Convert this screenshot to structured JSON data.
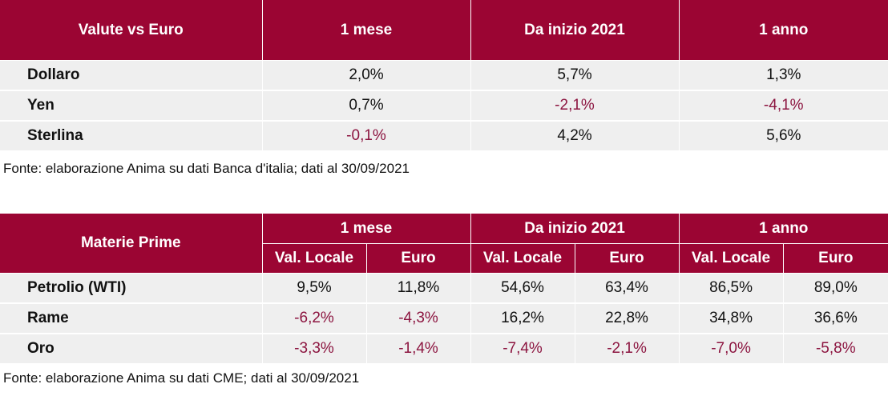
{
  "currency_table": {
    "headers": [
      "Valute vs Euro",
      "1 mese",
      "Da inizio 2021",
      "1 anno"
    ],
    "rows": [
      {
        "name": "Dollaro",
        "values": [
          "2,0%",
          "5,7%",
          "1,3%"
        ]
      },
      {
        "name": "Yen",
        "values": [
          "0,7%",
          "-2,1%",
          "-4,1%"
        ]
      },
      {
        "name": "Sterlina",
        "values": [
          "-0,1%",
          "4,2%",
          "5,6%"
        ]
      }
    ],
    "source": "Fonte: elaborazione Anima su dati Banca d'italia; dati al 30/09/2021"
  },
  "commodities_table": {
    "corner_header": "Materie Prime",
    "period_headers": [
      "1 mese",
      "Da inizio 2021",
      "1 anno"
    ],
    "sub_headers": [
      "Val. Locale",
      "Euro",
      "Val. Locale",
      "Euro",
      "Val. Locale",
      "Euro"
    ],
    "rows": [
      {
        "name": "Petrolio (WTI)",
        "values": [
          "9,5%",
          "11,8%",
          "54,6%",
          "63,4%",
          "86,5%",
          "89,0%"
        ]
      },
      {
        "name": "Rame",
        "values": [
          "-6,2%",
          "-4,3%",
          "16,2%",
          "22,8%",
          "34,8%",
          "36,6%"
        ]
      },
      {
        "name": "Oro",
        "values": [
          "-3,3%",
          "-1,4%",
          "-7,4%",
          "-2,1%",
          "-7,0%",
          "-5,8%"
        ]
      }
    ],
    "source": "Fonte: elaborazione Anima su dati CME; dati al 30/09/2021"
  },
  "colors": {
    "header_bg": "#9b0533",
    "negative_text": "#8c1540",
    "row_bg": "#efefef"
  }
}
